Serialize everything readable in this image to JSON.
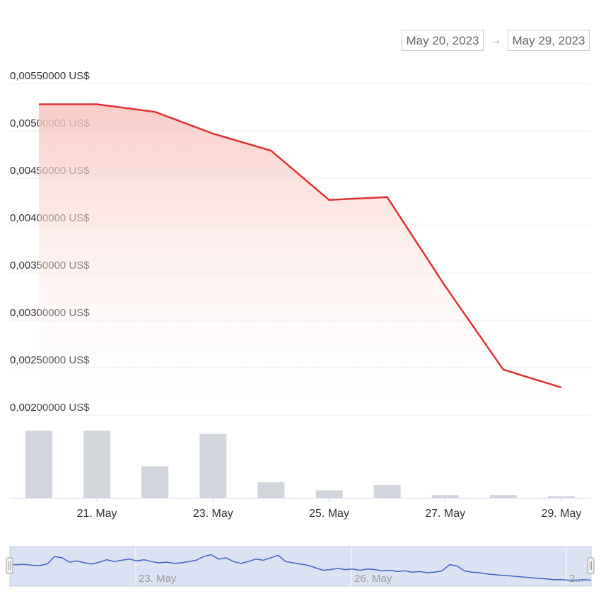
{
  "range": {
    "from": "May 20, 2023",
    "arrow": "→",
    "to": "May 29, 2023"
  },
  "colors": {
    "price_line": "#e03131",
    "area_top": "#f6c4bd",
    "bars": "#d1d5dc",
    "navigator_line": "#3f63c4",
    "navigator_fill": "#dbe2f3"
  },
  "chart_data": {
    "type": "line",
    "x": [
      "2023-05-20",
      "2023-05-21",
      "2023-05-22",
      "2023-05-23",
      "2023-05-24",
      "2023-05-25",
      "2023-05-26",
      "2023-05-27",
      "2023-05-28",
      "2023-05-29"
    ],
    "series": [
      {
        "values": [
          0.00528,
          0.00528,
          0.0052,
          0.00497,
          0.00479,
          0.00427,
          0.0043,
          0.00336,
          0.00248,
          0.00229
        ]
      }
    ],
    "volume": [
      1.0,
      1.0,
      0.47,
      0.95,
      0.23,
      0.11,
      0.19,
      0.04,
      0.04,
      0.02
    ],
    "y_ticks": [
      "0,00550000 US$",
      "0,00500000 US$",
      "0,00450000 US$",
      "0,00400000 US$",
      "0,00350000 US$",
      "0,00300000 US$",
      "0,00250000 US$",
      "0,00200000 US$"
    ],
    "y_tick_values": [
      0.0055,
      0.005,
      0.0045,
      0.004,
      0.0035,
      0.003,
      0.0025,
      0.002
    ],
    "ylim": [
      0.002,
      0.0055
    ],
    "x_ticks": [
      {
        "date": "2023-05-21",
        "label": "21. May"
      },
      {
        "date": "2023-05-23",
        "label": "23. May"
      },
      {
        "date": "2023-05-25",
        "label": "25. May"
      },
      {
        "date": "2023-05-27",
        "label": "27. May"
      },
      {
        "date": "2023-05-29",
        "label": "29. May"
      }
    ],
    "grid": true,
    "legend": "none"
  },
  "navigator": {
    "labels": [
      "23. May",
      "26. May",
      "2..."
    ],
    "values": [
      0.6,
      0.6,
      0.61,
      0.58,
      0.57,
      0.62,
      0.86,
      0.82,
      0.68,
      0.72,
      0.66,
      0.62,
      0.68,
      0.76,
      0.7,
      0.74,
      0.78,
      0.72,
      0.76,
      0.7,
      0.66,
      0.68,
      0.64,
      0.66,
      0.7,
      0.74,
      0.86,
      0.92,
      0.78,
      0.82,
      0.7,
      0.64,
      0.7,
      0.78,
      0.74,
      0.82,
      0.9,
      0.7,
      0.66,
      0.62,
      0.58,
      0.5,
      0.42,
      0.44,
      0.48,
      0.44,
      0.46,
      0.42,
      0.46,
      0.44,
      0.4,
      0.42,
      0.38,
      0.4,
      0.36,
      0.38,
      0.34,
      0.36,
      0.4,
      0.6,
      0.56,
      0.4,
      0.36,
      0.34,
      0.3,
      0.28,
      0.26,
      0.24,
      0.22,
      0.2,
      0.18,
      0.16,
      0.14,
      0.12,
      0.12,
      0.1,
      0.1,
      0.12,
      0.1
    ]
  }
}
